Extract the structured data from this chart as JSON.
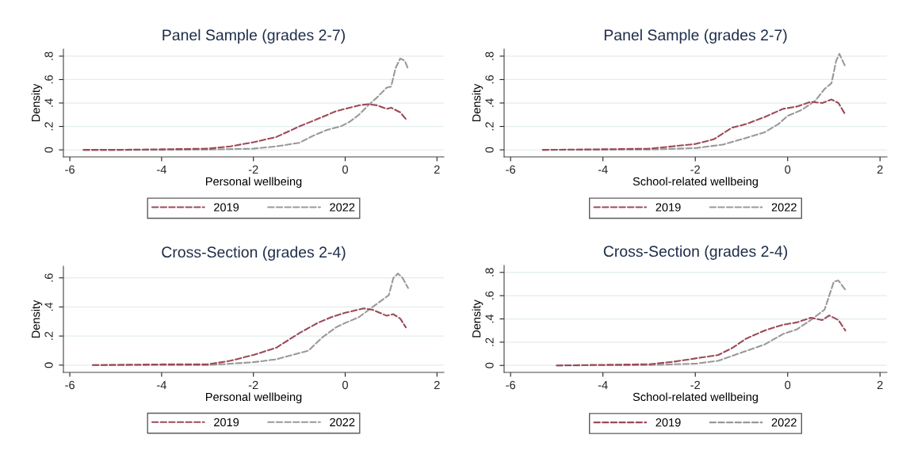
{
  "chart_data": [
    {
      "type": "line",
      "title": "Panel Sample (grades 2-7)",
      "xlabel": "Personal wellbeing",
      "ylabel": "Density",
      "xlim": [
        -6.14,
        2.15
      ],
      "ylim": [
        -0.06,
        0.86
      ],
      "xticks": [
        -6,
        -4,
        -2,
        0,
        2
      ],
      "yticks": [
        0,
        {
          "value": 0.2,
          "label": ".2"
        },
        {
          "value": 0.4,
          "label": ".4"
        },
        {
          "value": 0.6,
          "label": ".6"
        },
        {
          "value": 0.8,
          "label": ".8"
        }
      ],
      "grid": "y",
      "legend": "bottom",
      "line_style": "dashed",
      "series": [
        {
          "name": "2019",
          "color": "#9c4a58",
          "x": [
            -5.7,
            -5,
            -4,
            -3,
            -2.5,
            -2,
            -1.5,
            -1,
            -0.5,
            -0.2,
            0,
            0.3,
            0.5,
            0.7,
            0.9,
            1.0,
            1.2,
            1.35
          ],
          "values": [
            0,
            0,
            0.005,
            0.01,
            0.03,
            0.065,
            0.11,
            0.2,
            0.28,
            0.33,
            0.35,
            0.38,
            0.39,
            0.38,
            0.35,
            0.36,
            0.32,
            0.25
          ]
        },
        {
          "name": "2022",
          "color": "#999999",
          "x": [
            -5.7,
            -4,
            -3,
            -2,
            -1.5,
            -1,
            -0.7,
            -0.4,
            -0.1,
            0.1,
            0.3,
            0.5,
            0.7,
            0.9,
            1.0,
            1.1,
            1.2,
            1.3,
            1.37
          ],
          "values": [
            0,
            0,
            0.003,
            0.01,
            0.03,
            0.06,
            0.12,
            0.17,
            0.2,
            0.24,
            0.3,
            0.38,
            0.45,
            0.53,
            0.54,
            0.7,
            0.78,
            0.76,
            0.69
          ]
        }
      ]
    },
    {
      "type": "line",
      "title": "Panel Sample (grades 2-7)",
      "xlabel": "School-related wellbeing",
      "ylabel": "Density",
      "xlim": [
        -6.14,
        2.15
      ],
      "ylim": [
        -0.06,
        0.86
      ],
      "xticks": [
        -6,
        -4,
        -2,
        0,
        2
      ],
      "yticks": [
        0,
        {
          "value": 0.2,
          "label": ".2"
        },
        {
          "value": 0.4,
          "label": ".4"
        },
        {
          "value": 0.6,
          "label": ".6"
        },
        {
          "value": 0.8,
          "label": ".8"
        }
      ],
      "grid": "y",
      "legend": "bottom",
      "line_style": "dashed",
      "series": [
        {
          "name": "2019",
          "color": "#9c4a58",
          "x": [
            -5.3,
            -4,
            -3,
            -2.5,
            -2,
            -1.6,
            -1.2,
            -0.9,
            -0.5,
            -0.1,
            0.2,
            0.5,
            0.75,
            0.95,
            1.1,
            1.25
          ],
          "values": [
            0,
            0.005,
            0.01,
            0.03,
            0.05,
            0.09,
            0.19,
            0.22,
            0.28,
            0.35,
            0.37,
            0.41,
            0.4,
            0.43,
            0.4,
            0.3
          ]
        },
        {
          "name": "2022",
          "color": "#999999",
          "x": [
            -5.3,
            -3,
            -2,
            -1.4,
            -1,
            -0.5,
            -0.2,
            0,
            0.3,
            0.6,
            0.8,
            0.95,
            1.05,
            1.12,
            1.25
          ],
          "values": [
            0,
            0.003,
            0.015,
            0.045,
            0.09,
            0.15,
            0.22,
            0.29,
            0.34,
            0.42,
            0.52,
            0.57,
            0.76,
            0.82,
            0.71
          ]
        }
      ]
    },
    {
      "type": "line",
      "title": "Cross-Section (grades 2-4)",
      "xlabel": "Personal wellbeing",
      "ylabel": "Density",
      "xlim": [
        -6.14,
        2.15
      ],
      "ylim": [
        -0.05,
        0.68
      ],
      "xticks": [
        -6,
        -4,
        -2,
        0,
        2
      ],
      "yticks": [
        0,
        {
          "value": 0.2,
          "label": ".2"
        },
        {
          "value": 0.4,
          "label": ".4"
        },
        {
          "value": 0.6,
          "label": ".6"
        }
      ],
      "grid": "y",
      "legend": "bottom",
      "line_style": "dashed",
      "series": [
        {
          "name": "2019",
          "color": "#9c4a58",
          "x": [
            -5.5,
            -4,
            -3,
            -2.5,
            -2,
            -1.5,
            -1,
            -0.6,
            -0.3,
            0,
            0.4,
            0.6,
            0.9,
            1.05,
            1.2,
            1.32
          ],
          "values": [
            0,
            0.005,
            0.005,
            0.03,
            0.07,
            0.12,
            0.22,
            0.29,
            0.33,
            0.36,
            0.39,
            0.38,
            0.34,
            0.35,
            0.32,
            0.26
          ]
        },
        {
          "name": "2022",
          "color": "#999999",
          "x": [
            -5.5,
            -3,
            -2,
            -1.5,
            -0.8,
            -0.5,
            -0.2,
            0,
            0.3,
            0.6,
            0.9,
            0.95,
            1.05,
            1.15,
            1.25,
            1.37
          ],
          "values": [
            0,
            0,
            0.02,
            0.04,
            0.1,
            0.19,
            0.26,
            0.29,
            0.33,
            0.4,
            0.47,
            0.48,
            0.6,
            0.63,
            0.6,
            0.53
          ]
        }
      ]
    },
    {
      "type": "line",
      "title": "Cross-Section (grades 2-4)",
      "xlabel": "School-related wellbeing",
      "ylabel": "Density",
      "xlim": [
        -6.14,
        2.15
      ],
      "ylim": [
        -0.06,
        0.86
      ],
      "xticks": [
        -6,
        -4,
        -2,
        0,
        2
      ],
      "yticks": [
        0,
        {
          "value": 0.2,
          "label": ".2"
        },
        {
          "value": 0.4,
          "label": ".4"
        },
        {
          "value": 0.6,
          "label": ".6"
        },
        {
          "value": 0.8,
          "label": ".8"
        }
      ],
      "grid": "y",
      "legend": "bottom",
      "line_style": "dashed",
      "series": [
        {
          "name": "2019",
          "color": "#9c4a58",
          "x": [
            -5,
            -4,
            -3,
            -2.5,
            -2,
            -1.5,
            -1.2,
            -0.9,
            -0.5,
            -0.1,
            0.2,
            0.5,
            0.75,
            0.9,
            1.1,
            1.25
          ],
          "values": [
            0,
            0.005,
            0.01,
            0.03,
            0.06,
            0.09,
            0.15,
            0.23,
            0.3,
            0.35,
            0.37,
            0.41,
            0.39,
            0.43,
            0.39,
            0.3
          ]
        },
        {
          "name": "2022",
          "color": "#999999",
          "x": [
            -5,
            -3,
            -2,
            -1.5,
            -1,
            -0.5,
            -0.1,
            0.2,
            0.5,
            0.8,
            0.9,
            1.0,
            1.1,
            1.25
          ],
          "values": [
            0,
            0.003,
            0.015,
            0.04,
            0.11,
            0.18,
            0.27,
            0.31,
            0.39,
            0.48,
            0.6,
            0.72,
            0.73,
            0.65
          ]
        }
      ]
    }
  ]
}
